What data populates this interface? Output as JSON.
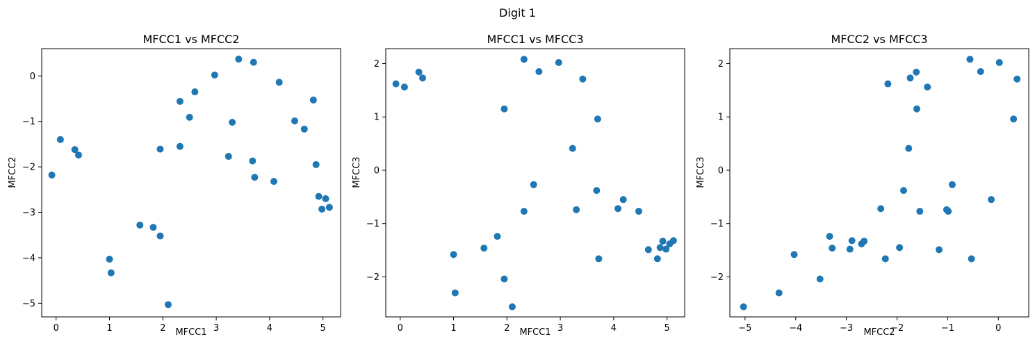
{
  "figure": {
    "title": "Digit 1"
  },
  "chart_data": [
    {
      "type": "scatter",
      "title": "MFCC1 vs MFCC2",
      "xlabel": "MFCC1",
      "ylabel": "MFCC2",
      "xlim": [
        -0.27,
        5.33
      ],
      "ylim": [
        -5.3,
        0.6
      ],
      "xticks": [
        0,
        1,
        2,
        3,
        4,
        5
      ],
      "yticks": [
        -5,
        -4,
        -3,
        -2,
        -1,
        0
      ],
      "color": "#1f77b4",
      "points": [
        [
          -0.08,
          -2.18
        ],
        [
          0.08,
          -1.4
        ],
        [
          0.35,
          -1.62
        ],
        [
          0.42,
          -1.74
        ],
        [
          1.0,
          -4.03
        ],
        [
          1.03,
          -4.33
        ],
        [
          1.57,
          -3.28
        ],
        [
          1.82,
          -3.33
        ],
        [
          1.95,
          -3.52
        ],
        [
          1.95,
          -1.61
        ],
        [
          2.1,
          -5.03
        ],
        [
          2.32,
          -0.56
        ],
        [
          2.32,
          -1.55
        ],
        [
          2.5,
          -0.91
        ],
        [
          2.6,
          -0.35
        ],
        [
          2.97,
          0.02
        ],
        [
          3.23,
          -1.77
        ],
        [
          3.3,
          -1.02
        ],
        [
          3.42,
          0.37
        ],
        [
          3.68,
          -1.87
        ],
        [
          3.7,
          0.3
        ],
        [
          3.72,
          -2.23
        ],
        [
          4.08,
          -2.32
        ],
        [
          4.18,
          -0.14
        ],
        [
          4.47,
          -0.99
        ],
        [
          4.65,
          -1.17
        ],
        [
          4.82,
          -0.53
        ],
        [
          4.87,
          -1.95
        ],
        [
          4.92,
          -2.65
        ],
        [
          4.98,
          -2.93
        ],
        [
          5.05,
          -2.7
        ],
        [
          5.12,
          -2.89
        ]
      ]
    },
    {
      "type": "scatter",
      "title": "MFCC1 vs MFCC3",
      "xlabel": "MFCC1",
      "ylabel": "MFCC3",
      "xlim": [
        -0.27,
        5.33
      ],
      "ylim": [
        -2.75,
        2.28
      ],
      "xticks": [
        0,
        1,
        2,
        3,
        4,
        5
      ],
      "yticks": [
        -2,
        -1,
        0,
        1,
        2
      ],
      "color": "#1f77b4",
      "points": [
        [
          -0.08,
          1.62
        ],
        [
          0.08,
          1.56
        ],
        [
          0.35,
          1.84
        ],
        [
          0.42,
          1.73
        ],
        [
          1.0,
          -1.58
        ],
        [
          1.03,
          -2.3
        ],
        [
          1.57,
          -1.46
        ],
        [
          1.82,
          -1.24
        ],
        [
          1.95,
          -2.04
        ],
        [
          1.95,
          1.15
        ],
        [
          2.1,
          -2.56
        ],
        [
          2.32,
          2.08
        ],
        [
          2.32,
          -0.77
        ],
        [
          2.5,
          -0.27
        ],
        [
          2.6,
          1.85
        ],
        [
          2.97,
          2.02
        ],
        [
          3.23,
          0.41
        ],
        [
          3.3,
          -0.74
        ],
        [
          3.42,
          1.71
        ],
        [
          3.68,
          -0.38
        ],
        [
          3.7,
          0.96
        ],
        [
          3.72,
          -1.66
        ],
        [
          4.08,
          -0.72
        ],
        [
          4.18,
          -0.55
        ],
        [
          4.47,
          -0.77
        ],
        [
          4.65,
          -1.49
        ],
        [
          4.82,
          -1.66
        ],
        [
          4.87,
          -1.45
        ],
        [
          4.92,
          -1.33
        ],
        [
          4.98,
          -1.48
        ],
        [
          5.05,
          -1.38
        ],
        [
          5.12,
          -1.32
        ]
      ]
    },
    {
      "type": "scatter",
      "title": "MFCC2 vs MFCC3",
      "xlabel": "MFCC2",
      "ylabel": "MFCC3",
      "xlim": [
        -5.3,
        0.6
      ],
      "ylim": [
        -2.75,
        2.28
      ],
      "xticks": [
        -5,
        -4,
        -3,
        -2,
        -1,
        0
      ],
      "yticks": [
        -2,
        -1,
        0,
        1,
        2
      ],
      "color": "#1f77b4",
      "points": [
        [
          -2.18,
          1.62
        ],
        [
          -1.4,
          1.56
        ],
        [
          -1.62,
          1.84
        ],
        [
          -1.74,
          1.73
        ],
        [
          -4.03,
          -1.58
        ],
        [
          -4.33,
          -2.3
        ],
        [
          -3.28,
          -1.46
        ],
        [
          -3.33,
          -1.24
        ],
        [
          -3.52,
          -2.04
        ],
        [
          -1.61,
          1.15
        ],
        [
          -5.03,
          -2.56
        ],
        [
          -0.56,
          2.08
        ],
        [
          -1.55,
          -0.77
        ],
        [
          -0.91,
          -0.27
        ],
        [
          -0.35,
          1.85
        ],
        [
          0.02,
          2.02
        ],
        [
          -1.77,
          0.41
        ],
        [
          -1.02,
          -0.74
        ],
        [
          0.37,
          1.71
        ],
        [
          -1.87,
          -0.38
        ],
        [
          0.3,
          0.96
        ],
        [
          -2.23,
          -1.66
        ],
        [
          -2.32,
          -0.72
        ],
        [
          -0.14,
          -0.55
        ],
        [
          -0.99,
          -0.77
        ],
        [
          -1.17,
          -1.49
        ],
        [
          -0.53,
          -1.66
        ],
        [
          -1.95,
          -1.45
        ],
        [
          -2.65,
          -1.33
        ],
        [
          -2.93,
          -1.48
        ],
        [
          -2.7,
          -1.38
        ],
        [
          -2.89,
          -1.32
        ]
      ]
    }
  ]
}
